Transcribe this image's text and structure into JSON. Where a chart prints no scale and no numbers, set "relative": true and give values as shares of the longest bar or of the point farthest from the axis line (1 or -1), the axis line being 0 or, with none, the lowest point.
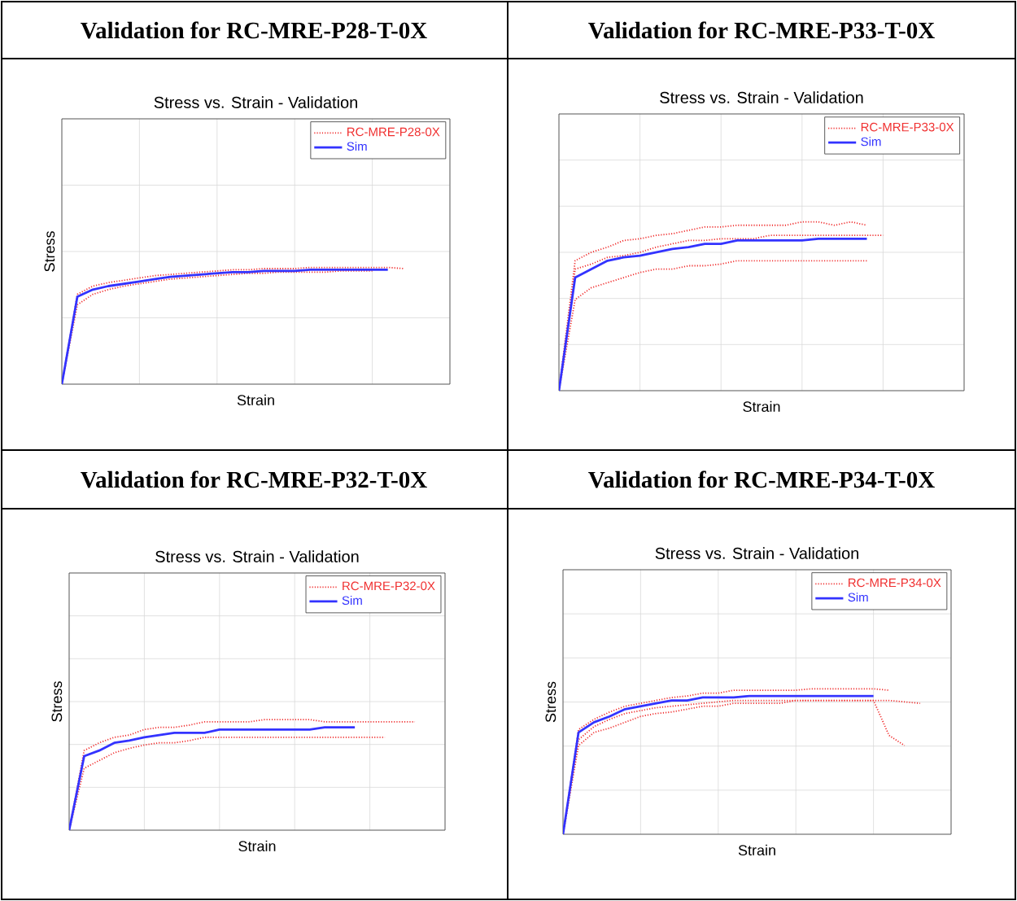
{
  "chart_data": [
    {
      "type": "line",
      "title": "Validation for RC-MRE-P28-T-0X",
      "subtitle": "Stress vs. Strain - Validation",
      "xlabel": "Strain",
      "ylabel": "Stress",
      "relative": true,
      "grid": true,
      "tick_labels": false,
      "legend": "top right",
      "categories": [
        null,
        null,
        null,
        null,
        null,
        null,
        null,
        null,
        null,
        null,
        null,
        null,
        null,
        null,
        null,
        null,
        null,
        null,
        null,
        null,
        null,
        null,
        null,
        null,
        null,
        null
      ],
      "series": [
        {
          "name": "RC-MRE-P28-0X",
          "color": "#f03030",
          "line_style": "dotted",
          "values": [
            0,
            0.77,
            0.84,
            0.87,
            0.89,
            0.91,
            0.93,
            0.94,
            0.95,
            0.96,
            0.97,
            0.98,
            0.98,
            0.99,
            0.99,
            0.99,
            1,
            1,
            1,
            1,
            1,
            1,
            0.99,
            null,
            null,
            null
          ]
        },
        {
          "color": "#f03030",
          "line_style": "dotted",
          "values": [
            0,
            0.68,
            0.77,
            0.81,
            0.84,
            0.86,
            0.88,
            0.9,
            0.91,
            0.92,
            0.93,
            0.94,
            0.95,
            0.95,
            0.96,
            0.96,
            0.96,
            0.96,
            0.97,
            0.97,
            0.97,
            null,
            null,
            null,
            null,
            null
          ]
        },
        {
          "name": "Sim",
          "color": "#3333ff",
          "line_style": "solid",
          "values": [
            0,
            0.75,
            0.81,
            0.84,
            0.86,
            0.88,
            0.9,
            0.92,
            0.93,
            0.94,
            0.95,
            0.96,
            0.96,
            0.97,
            0.97,
            0.97,
            0.98,
            0.98,
            0.98,
            0.98,
            0.98,
            0.98,
            null,
            null,
            null,
            null
          ]
        }
      ]
    },
    {
      "type": "line",
      "title": "Validation for RC-MRE-P33-T-0X",
      "subtitle": "Stress vs. Strain - Validation",
      "xlabel": "Strain",
      "relative": true,
      "grid": true,
      "tick_labels": false,
      "legend": "top right",
      "categories": [
        null,
        null,
        null,
        null,
        null,
        null,
        null,
        null,
        null,
        null,
        null,
        null,
        null,
        null,
        null,
        null,
        null,
        null,
        null,
        null,
        null,
        null,
        null,
        null,
        null,
        null
      ],
      "series": [
        {
          "name": "RC-MRE-P33-0X",
          "color": "#f03030",
          "line_style": "dotted",
          "values": [
            0,
            0.77,
            0.82,
            0.85,
            0.89,
            0.9,
            0.92,
            0.93,
            0.95,
            0.97,
            0.97,
            0.98,
            0.98,
            0.98,
            0.98,
            1,
            1,
            0.98,
            1,
            0.98,
            null,
            null,
            null,
            null,
            null,
            null
          ]
        },
        {
          "color": "#f03030",
          "line_style": "dotted",
          "values": [
            0,
            0.72,
            0.75,
            0.79,
            0.8,
            0.82,
            0.85,
            0.87,
            0.89,
            0.89,
            0.9,
            0.9,
            0.9,
            0.92,
            0.92,
            0.92,
            0.92,
            0.92,
            0.92,
            0.92,
            0.92,
            null,
            null,
            null,
            null,
            null
          ]
        },
        {
          "color": "#f03030",
          "line_style": "dotted",
          "values": [
            0,
            0.54,
            0.61,
            0.64,
            0.67,
            0.7,
            0.72,
            0.72,
            0.74,
            0.74,
            0.75,
            0.77,
            0.77,
            0.77,
            0.77,
            0.77,
            0.77,
            0.77,
            0.77,
            0.77,
            null,
            null,
            null,
            null,
            null,
            null
          ]
        },
        {
          "name": "Sim",
          "color": "#3333ff",
          "line_style": "solid",
          "values": [
            0,
            0.67,
            0.72,
            0.77,
            0.79,
            0.8,
            0.82,
            0.84,
            0.85,
            0.87,
            0.87,
            0.89,
            0.89,
            0.89,
            0.89,
            0.89,
            0.9,
            0.9,
            0.9,
            0.9,
            null,
            null,
            null,
            null,
            null,
            null
          ]
        }
      ]
    },
    {
      "type": "line",
      "title": "Validation for RC-MRE-P32-T-0X",
      "subtitle": "Stress vs. Strain - Validation",
      "xlabel": "Strain",
      "ylabel": "Stress",
      "relative": true,
      "grid": true,
      "tick_labels": false,
      "legend": "top right",
      "categories": [
        null,
        null,
        null,
        null,
        null,
        null,
        null,
        null,
        null,
        null,
        null,
        null,
        null,
        null,
        null,
        null,
        null,
        null,
        null,
        null,
        null,
        null,
        null,
        null,
        null,
        null
      ],
      "series": [
        {
          "name": "RC-MRE-P32-0X",
          "color": "#f03030",
          "line_style": "dotted",
          "values": [
            0,
            0.72,
            0.79,
            0.84,
            0.86,
            0.91,
            0.93,
            0.93,
            0.95,
            0.98,
            0.98,
            0.98,
            0.98,
            1,
            1,
            1,
            1,
            0.98,
            0.98,
            0.98,
            0.98,
            0.98,
            0.98,
            0.98,
            null,
            null
          ]
        },
        {
          "color": "#f03030",
          "line_style": "dotted",
          "values": [
            0,
            0.56,
            0.63,
            0.7,
            0.74,
            0.77,
            0.79,
            0.79,
            0.81,
            0.84,
            0.84,
            0.84,
            0.84,
            0.84,
            0.84,
            0.84,
            0.84,
            0.84,
            0.84,
            0.84,
            0.84,
            0.84,
            null,
            null,
            null,
            null
          ]
        },
        {
          "name": "Sim",
          "color": "#3333ff",
          "line_style": "solid",
          "values": [
            0,
            0.67,
            0.72,
            0.79,
            0.81,
            0.84,
            0.86,
            0.88,
            0.88,
            0.88,
            0.91,
            0.91,
            0.91,
            0.91,
            0.91,
            0.91,
            0.91,
            0.93,
            0.93,
            0.93,
            null,
            null,
            null,
            null,
            null,
            null
          ]
        }
      ]
    },
    {
      "type": "line",
      "title": "Validation for RC-MRE-P34-T-0X",
      "subtitle": "Stress vs. Strain - Validation",
      "xlabel": "Strain",
      "ylabel": "Stress",
      "relative": true,
      "grid": true,
      "tick_labels": false,
      "legend": "top right",
      "categories": [
        null,
        null,
        null,
        null,
        null,
        null,
        null,
        null,
        null,
        null,
        null,
        null,
        null,
        null,
        null,
        null,
        null,
        null,
        null,
        null,
        null,
        null,
        null,
        null,
        null,
        null
      ],
      "series": [
        {
          "name": "RC-MRE-P34-0X",
          "color": "#f03030",
          "line_style": "dotted",
          "values": [
            0,
            0.72,
            0.79,
            0.84,
            0.88,
            0.9,
            0.92,
            0.94,
            0.95,
            0.97,
            0.97,
            0.99,
            0.99,
            0.99,
            0.99,
            0.99,
            1,
            1,
            1,
            1,
            1,
            0.99,
            null,
            null,
            null,
            null
          ]
        },
        {
          "color": "#f03030",
          "line_style": "dotted",
          "values": [
            0,
            0.61,
            0.7,
            0.73,
            0.77,
            0.81,
            0.83,
            0.84,
            0.86,
            0.88,
            0.88,
            0.9,
            0.9,
            0.9,
            0.9,
            0.92,
            0.92,
            0.92,
            0.92,
            0.92,
            0.92,
            0.68,
            0.61,
            null,
            null,
            null
          ]
        },
        {
          "color": "#f03030",
          "line_style": "dotted",
          "values": [
            0,
            0.65,
            0.74,
            0.79,
            0.83,
            0.85,
            0.87,
            0.88,
            0.89,
            0.9,
            0.91,
            0.92,
            0.92,
            0.92,
            0.92,
            0.92,
            0.92,
            0.92,
            0.92,
            0.92,
            0.92,
            0.92,
            0.91,
            0.9,
            null,
            null
          ]
        },
        {
          "name": "Sim",
          "color": "#3333ff",
          "line_style": "solid",
          "values": [
            0,
            0.7,
            0.77,
            0.81,
            0.86,
            0.88,
            0.9,
            0.92,
            0.92,
            0.94,
            0.94,
            0.94,
            0.95,
            0.95,
            0.95,
            0.95,
            0.95,
            0.95,
            0.95,
            0.95,
            0.95,
            null,
            null,
            null,
            null,
            null
          ]
        }
      ]
    }
  ]
}
